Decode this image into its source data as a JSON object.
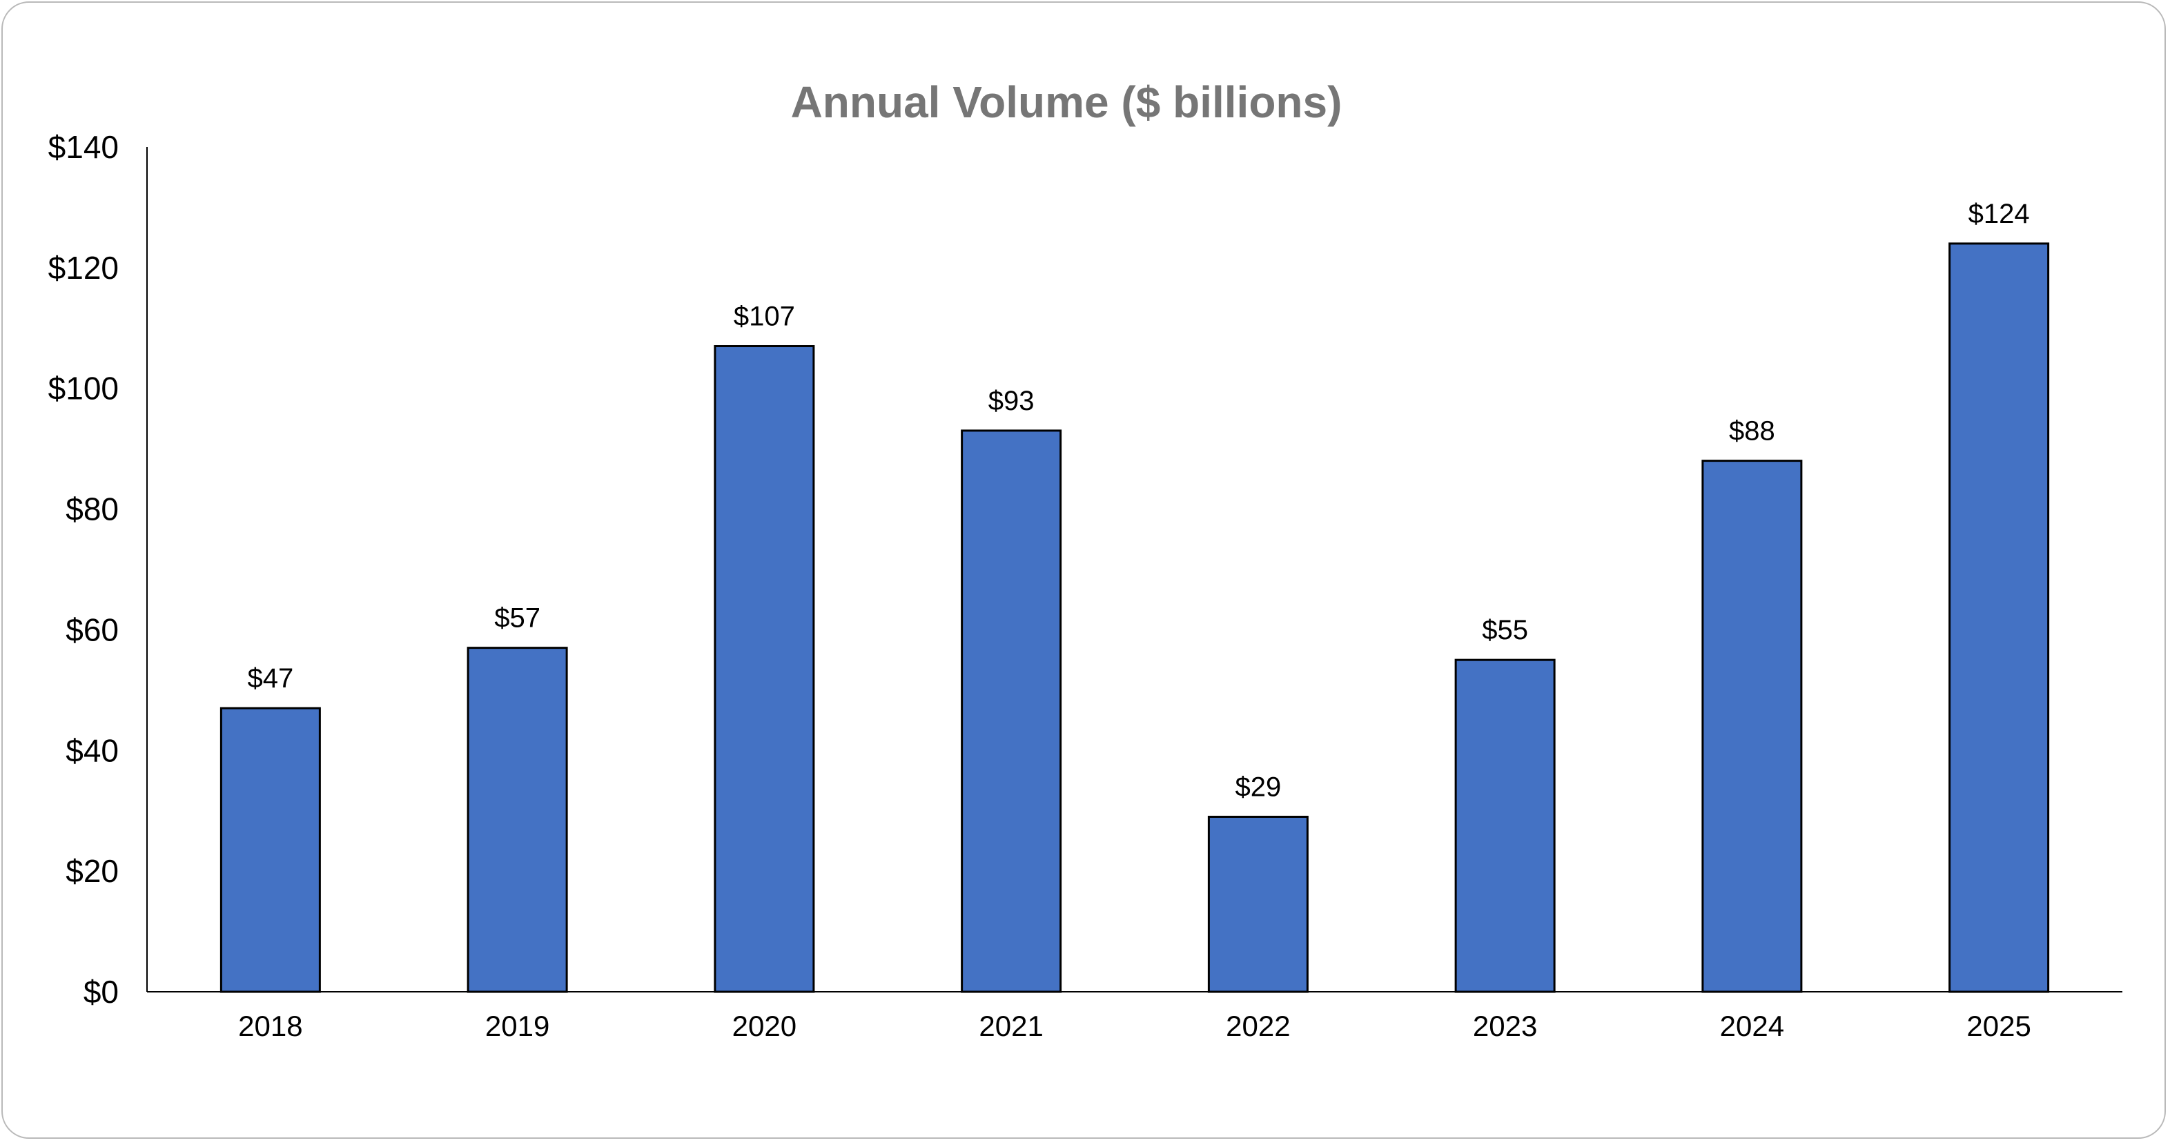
{
  "chart_data": {
    "type": "bar",
    "title": "Annual Volume ($ billions)",
    "xlabel": "",
    "ylabel": "",
    "categories": [
      "2018",
      "2019",
      "2020",
      "2021",
      "2022",
      "2023",
      "2024",
      "2025"
    ],
    "values": [
      47,
      57,
      107,
      93,
      29,
      55,
      88,
      124
    ],
    "data_labels": [
      "$47",
      "$57",
      "$107",
      "$93",
      "$29",
      "$55",
      "$88",
      "$124"
    ],
    "ylim": [
      0,
      140
    ],
    "yticks": [
      0,
      20,
      40,
      60,
      80,
      100,
      120,
      140
    ],
    "ytick_labels": [
      "$0",
      "$20",
      "$40",
      "$60",
      "$80",
      "$100",
      "$120",
      "$140"
    ],
    "grid": false,
    "legend": "none",
    "colors": {
      "bar": "#4472C4",
      "bar_edge": "#000000",
      "title": "#767676",
      "axis": "#000000",
      "text": "#000000"
    }
  }
}
